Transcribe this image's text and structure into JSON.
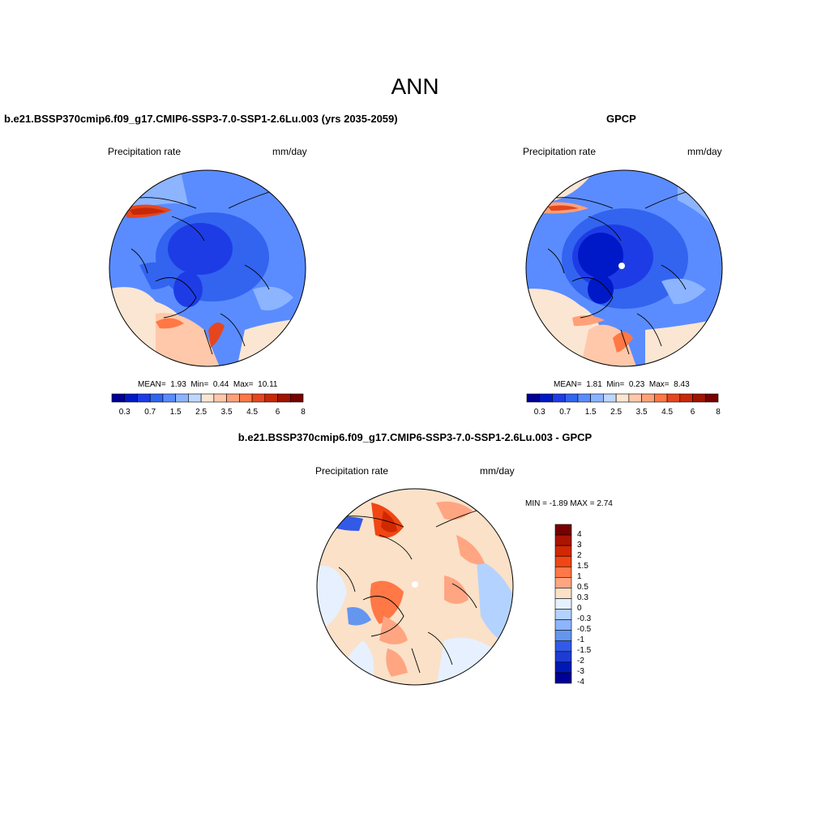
{
  "title": "ANN",
  "colors": {
    "seq_cbar": [
      "#000096",
      "#0019c8",
      "#1e3ce6",
      "#3264f0",
      "#5a8cff",
      "#8cb4ff",
      "#bed7ff",
      "#fae6d2",
      "#ffc8aa",
      "#ffa078",
      "#ff7846",
      "#e6461e",
      "#c8280a",
      "#a01400",
      "#780000"
    ],
    "diff_cbar": [
      "#780000",
      "#aa1400",
      "#d22800",
      "#f04614",
      "#ff7846",
      "#ffa582",
      "#fae1c8",
      "#e6f0ff",
      "#b4d2ff",
      "#8cb4ff",
      "#6496f0",
      "#325ae6",
      "#1e3cd2",
      "#0019b4",
      "#000096"
    ],
    "land": "#f2b08a",
    "ocean_deep": "#2f5fe0",
    "ocean_mid": "#4f7fee",
    "ocean_light": "#8cb2f5"
  },
  "panels": {
    "model": {
      "title": "b.e21.BSSP370cmip6.f09_g17.CMIP6-SSP3-7.0-SSP1-2.6Lu.003 (yrs 2035-2059)",
      "left_label": "Precipitation rate",
      "right_label": "mm/day",
      "mean_label": "MEAN=",
      "mean": "1.93",
      "min_label": "Min=",
      "min": "0.44",
      "max_label": "Max=",
      "max": "10.11",
      "cbar_labels": [
        "0.3",
        "0.7",
        "1.5",
        "2.5",
        "3.5",
        "4.5",
        "6",
        "8"
      ]
    },
    "obs": {
      "title": "GPCP",
      "left_label": "Precipitation rate",
      "right_label": "mm/day",
      "mean_label": "MEAN=",
      "mean": "1.81",
      "min_label": "Min=",
      "min": "0.23",
      "max_label": "Max=",
      "max": "8.43",
      "cbar_labels": [
        "0.3",
        "0.7",
        "1.5",
        "2.5",
        "3.5",
        "4.5",
        "6",
        "8"
      ]
    },
    "diff": {
      "title": "b.e21.BSSP370cmip6.f09_g17.CMIP6-SSP3-7.0-SSP1-2.6Lu.003 - GPCP",
      "left_label": "Precipitation rate",
      "right_label": "mm/day",
      "minmax": "MIN =  -1.89 MAX =   2.74",
      "cbar_labels": [
        "4",
        "3",
        "2",
        "1.5",
        "1",
        "0.5",
        "0.3",
        "0",
        "-0.3",
        "-0.5",
        "-1",
        "-1.5",
        "-2",
        "-3",
        "-4"
      ]
    }
  }
}
